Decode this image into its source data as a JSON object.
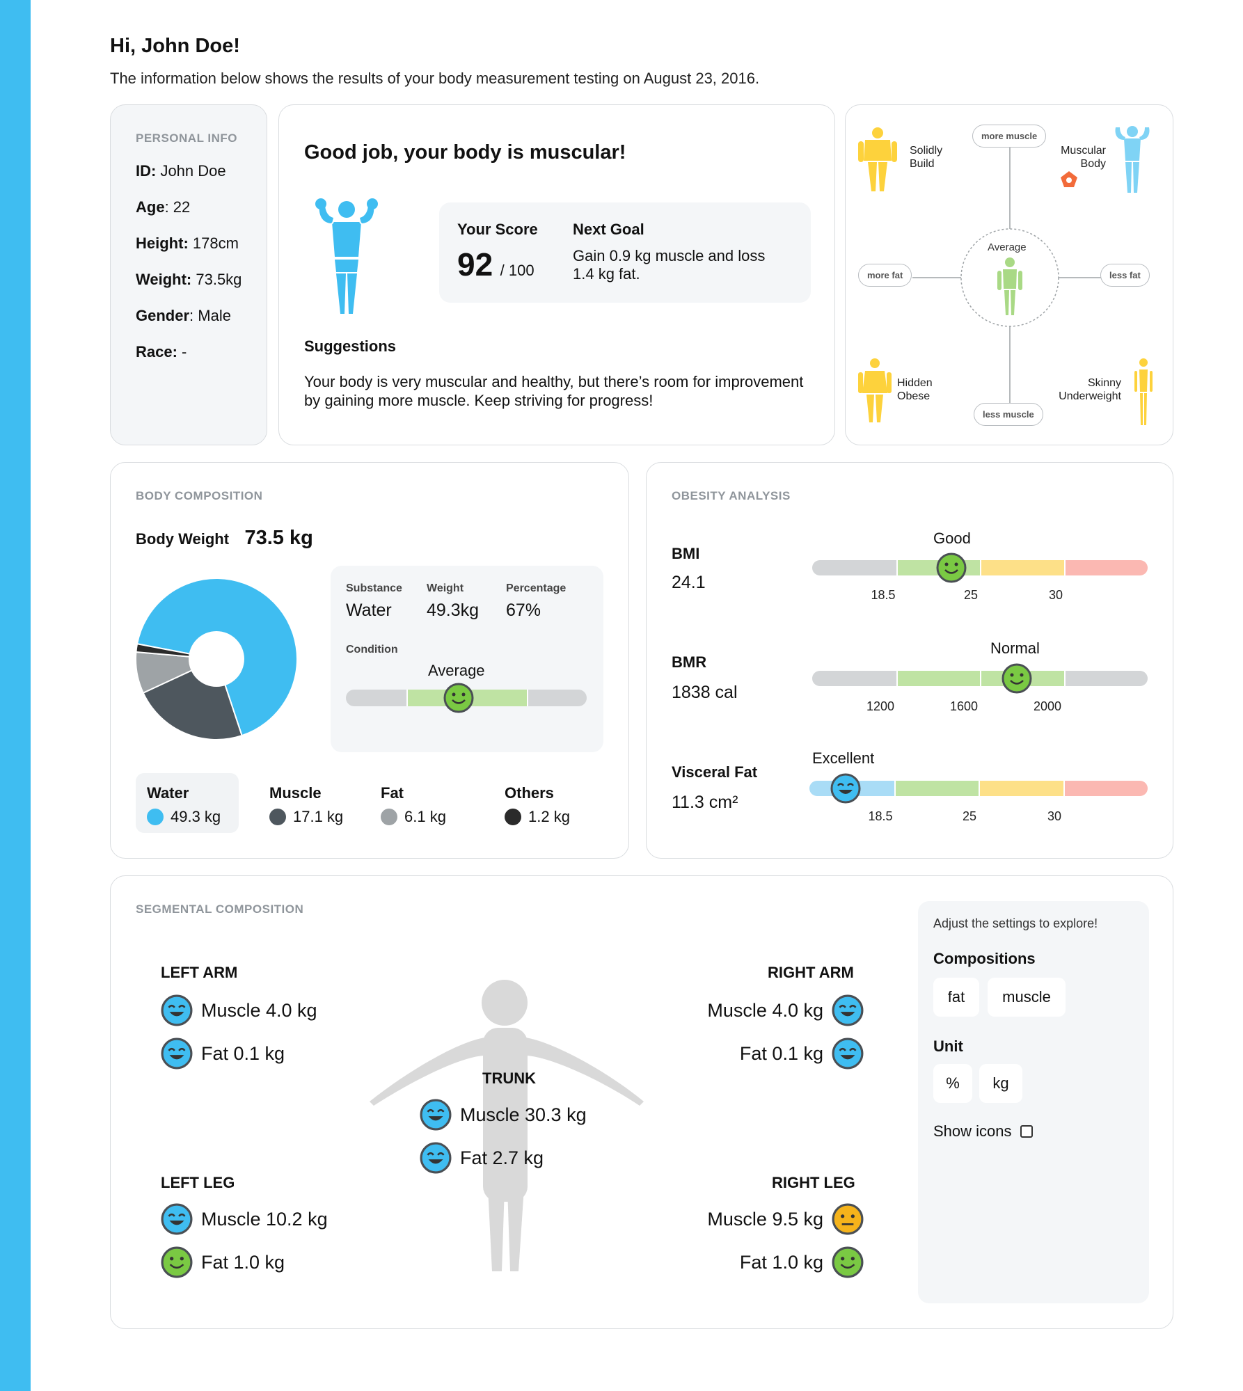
{
  "header": {
    "greeting": "Hi, John Doe!",
    "intro": "The information below shows the results of your body measurement testing on August 23, 2016."
  },
  "personal_info": {
    "label": "PERSONAL INFO",
    "rows": [
      {
        "key": "ID:",
        "value": " John Doe"
      },
      {
        "key": "Age",
        "value": ": 22"
      },
      {
        "key": "Height:",
        "value": " 178cm"
      },
      {
        "key": "Weight:",
        "value": " 73.5kg"
      },
      {
        "key": "Gender",
        "value": ": Male"
      },
      {
        "key": "Race:",
        "value": " -"
      }
    ]
  },
  "summary": {
    "title": "Good job, your body is muscular!",
    "score_label": "Your Score",
    "score": "92",
    "score_max": "/ 100",
    "goal_label": "Next Goal",
    "goal_text": "Gain 0.9 kg muscle and loss 1.4 kg fat.",
    "suggestions_label": "Suggestions",
    "suggestions_text": "Your body is very muscular and healthy, but there’s room for improvement by gaining more muscle. Keep striving for progress!"
  },
  "body_type": {
    "solidly_build": "Solidly Build",
    "muscular_body": "Muscular Body",
    "hidden_obese": "Hidden Obese",
    "skinny_underweight": "Skinny Underweight",
    "average": "Average",
    "more_muscle": "more muscle",
    "less_muscle": "less muscle",
    "more_fat": "more fat",
    "less_fat": "less fat"
  },
  "body_composition": {
    "label": "BODY COMPOSITION",
    "weight_label": "Body Weight",
    "weight_value": "73.5 kg",
    "detail": {
      "substance_label": "Substance",
      "substance": "Water",
      "weight_label": "Weight",
      "weight": "49.3kg",
      "percentage_label": "Percentage",
      "percentage": "67%",
      "condition_label": "Condition",
      "condition": "Average"
    },
    "legend": [
      {
        "name": "Water",
        "value": "49.3 kg",
        "color": "#3fbdf1"
      },
      {
        "name": "Muscle",
        "value": "17.1 kg",
        "color": "#4e575e"
      },
      {
        "name": "Fat",
        "value": "6.1 kg",
        "color": "#9ea3a6"
      },
      {
        "name": "Others",
        "value": "1.2 kg",
        "color": "#2b2b2b"
      }
    ]
  },
  "chart_data": {
    "type": "pie",
    "categories": [
      "Water",
      "Muscle",
      "Fat",
      "Others"
    ],
    "values": [
      49.3,
      17.1,
      6.1,
      1.2
    ],
    "colors": [
      "#3fbdf1",
      "#4e575e",
      "#9ea3a6",
      "#2b2b2b"
    ],
    "donut": true
  },
  "obesity": {
    "label": "OBESITY ANALYSIS",
    "bmi": {
      "label": "BMI",
      "value": "24.1",
      "status": "Good",
      "ticks": [
        "18.5",
        "25",
        "30"
      ],
      "marker_fraction": 0.42
    },
    "bmr": {
      "label": "BMR",
      "value": "1838 cal",
      "status": "Normal",
      "ticks": [
        "1200",
        "1600",
        "2000"
      ],
      "marker_fraction": 0.61
    },
    "visceral": {
      "label": "Visceral Fat",
      "value": "11.3 cm²",
      "status": "Excellent",
      "ticks": [
        "18.5",
        "25",
        "30"
      ],
      "marker_fraction": 0.11
    }
  },
  "segmental": {
    "label": "SEGMENTAL COMPOSITION",
    "left_arm": {
      "title": "LEFT ARM",
      "muscle": "Muscle 4.0 kg",
      "fat": "Fat 0.1 kg"
    },
    "right_arm": {
      "title": "RIGHT ARM",
      "muscle": "Muscle 4.0 kg",
      "fat": "Fat 0.1 kg"
    },
    "trunk": {
      "title": "TRUNK",
      "muscle": "Muscle 30.3 kg",
      "fat": "Fat 2.7 kg"
    },
    "left_leg": {
      "title": "LEFT LEG",
      "muscle": "Muscle 10.2 kg",
      "fat": "Fat 1.0 kg"
    },
    "right_leg": {
      "title": "RIGHT LEG",
      "muscle": "Muscle 9.5 kg",
      "fat": "Fat 1.0 kg"
    }
  },
  "settings": {
    "hint": "Adjust the settings to explore!",
    "compositions_label": "Compositions",
    "compositions": [
      "fat",
      "muscle"
    ],
    "unit_label": "Unit",
    "units": [
      "%",
      "kg"
    ],
    "show_icons_label": "Show icons"
  },
  "colors": {
    "accent_blue": "#3fbdf1",
    "good_green": "#7ac943",
    "warn_yellow": "#f5b31b",
    "bar_gray": "#d3d5d7",
    "bar_green": "#bfe3a3",
    "bar_yellow": "#fde088",
    "bar_red": "#fbb8b2",
    "bar_lightblue": "#a9dcf6"
  }
}
